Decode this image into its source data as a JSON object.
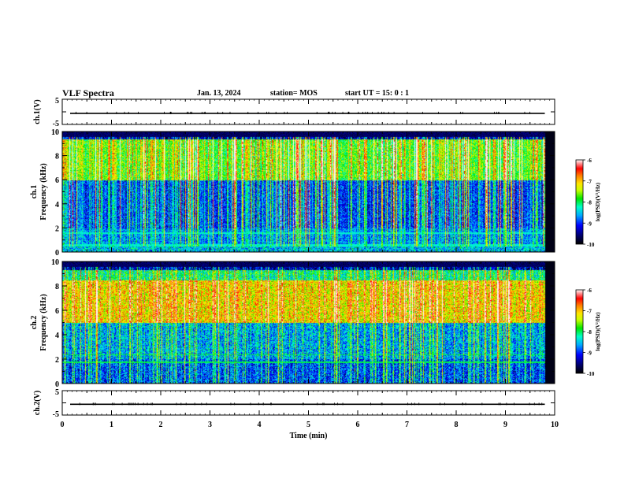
{
  "header": {
    "title": "VLF Spectra",
    "date": "Jan. 13, 2024",
    "station": "station= MOS",
    "start": "start UT =  15: 0 : 1"
  },
  "chart_data": {
    "type": "heatmap",
    "xlabel": "Time (min)",
    "xlim": [
      0,
      10
    ],
    "xticks": [
      "0",
      "1",
      "2",
      "3",
      "4",
      "5",
      "6",
      "7",
      "8",
      "9",
      "10"
    ],
    "panels": [
      {
        "name": "ch.1(V)",
        "type": "line",
        "ylabel": "ch.1(V)",
        "ylim": [
          -5,
          5
        ],
        "yticks": [
          "5",
          "-5"
        ],
        "level": -0.6
      },
      {
        "name": "ch.1 spectrogram",
        "type": "heatmap",
        "ylabel_line1": "ch.1",
        "ylabel_line2": "Frequency (kHz)",
        "ylim": [
          0,
          10
        ],
        "yticks": [
          "0",
          "2",
          "4",
          "6",
          "8",
          "10"
        ],
        "data_end_min": 9.8,
        "colorbar": {
          "label": "log(PSD)(V²/Hz)",
          "range": [
            -10,
            -6
          ],
          "ticks": [
            "-6",
            "-7",
            "-8",
            "-9",
            "-10"
          ]
        }
      },
      {
        "name": "ch.2 spectrogram",
        "type": "heatmap",
        "ylabel_line1": "ch.2",
        "ylabel_line2": "Frequency (kHz)",
        "ylim": [
          0,
          10
        ],
        "yticks": [
          "0",
          "2",
          "4",
          "6",
          "8",
          "10"
        ],
        "data_end_min": 9.8,
        "colorbar": {
          "label": "log(PSD)(V²/Hz)",
          "range": [
            -10,
            -6
          ],
          "ticks": [
            "-6",
            "-7",
            "-8",
            "-9",
            "-10"
          ]
        }
      },
      {
        "name": "ch.2(V)",
        "type": "line",
        "ylabel": "ch.2(V)",
        "ylim": [
          -5,
          5
        ],
        "yticks": [
          "5",
          "-5"
        ],
        "level": -0.6
      }
    ]
  }
}
